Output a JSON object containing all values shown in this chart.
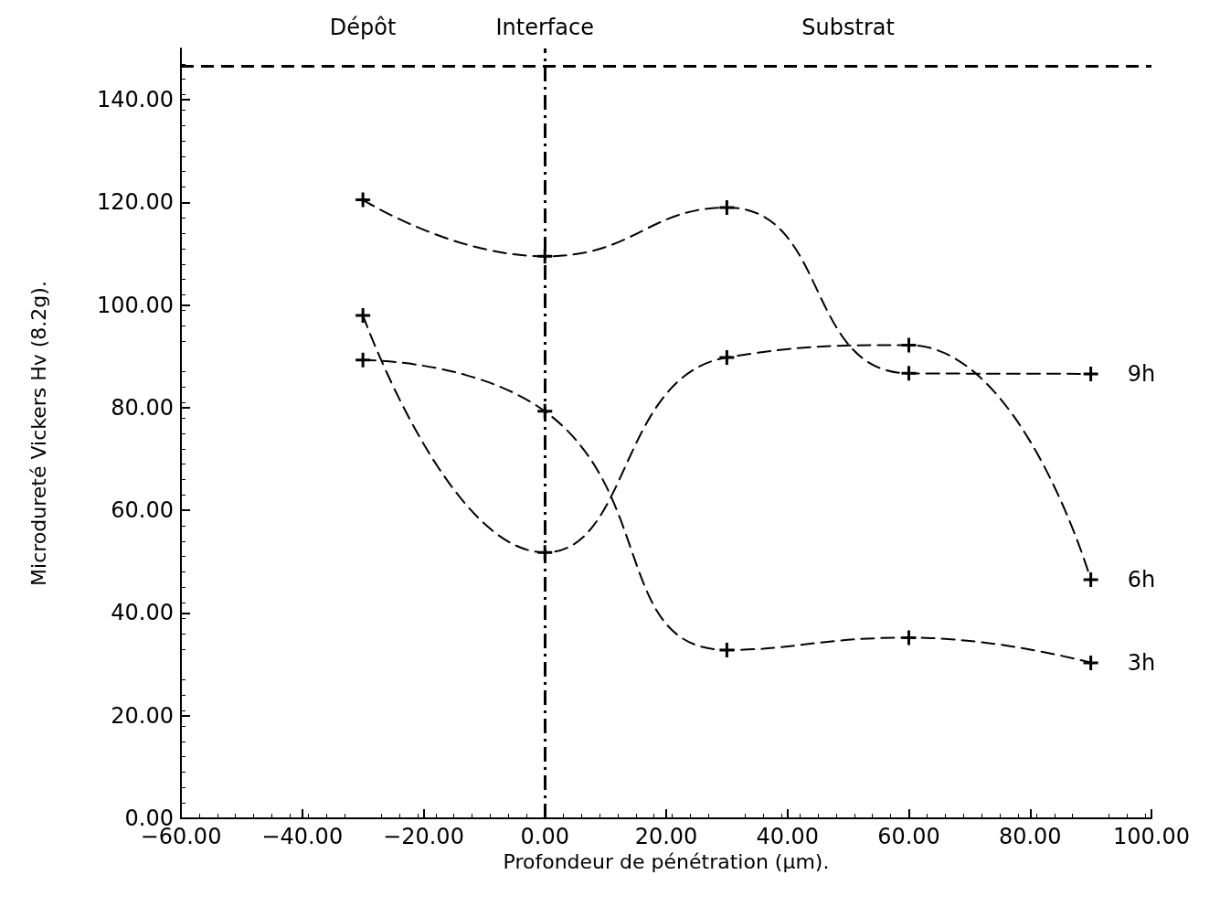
{
  "chart_data": {
    "type": "line",
    "xlabel": "Profondeur de pénétration (µm).",
    "ylabel": "Microdureté Vickers Hv (8.2g).",
    "x": [
      -30,
      0,
      30,
      60,
      90
    ],
    "series": [
      {
        "name": "9h",
        "color": "#000000",
        "values": [
          120.5,
          109.5,
          119,
          86.7,
          86.6
        ]
      },
      {
        "name": "6h",
        "color": "#000000",
        "values": [
          98,
          51.8,
          89.8,
          92.2,
          46.5
        ]
      },
      {
        "name": "3h",
        "color": "#000000",
        "values": [
          89.3,
          79.3,
          32.8,
          35.2,
          30.3
        ]
      }
    ],
    "xlim": [
      -60,
      100
    ],
    "xticks": [
      {
        "value": -60,
        "label": "−60.00"
      },
      {
        "value": -40,
        "label": "−40.00"
      },
      {
        "value": -20,
        "label": "−20.00"
      },
      {
        "value": 0,
        "label": "0.00"
      },
      {
        "value": 20,
        "label": "20.00"
      },
      {
        "value": 40,
        "label": "40.00"
      },
      {
        "value": 60,
        "label": "60.00"
      },
      {
        "value": 80,
        "label": "80.00"
      },
      {
        "value": 100,
        "label": "100.00"
      }
    ],
    "ylim": [
      0,
      150
    ],
    "yticks": [
      {
        "value": 0,
        "label": "0.00"
      },
      {
        "value": 20,
        "label": "20.00"
      },
      {
        "value": 40,
        "label": "40.00"
      },
      {
        "value": 60,
        "label": "60.00"
      },
      {
        "value": 80,
        "label": "80.00"
      },
      {
        "value": 100,
        "label": "100.00"
      },
      {
        "value": 120,
        "label": "120.00"
      },
      {
        "value": 140,
        "label": "140.00"
      }
    ],
    "ref_lines": [
      {
        "axis": "x",
        "value": 0,
        "line_style": "dashdot"
      },
      {
        "axis": "y",
        "value": 146.5,
        "line_style": "dashed"
      }
    ],
    "annotations": [
      "Dépôt",
      "Interface",
      "Substrat"
    ],
    "marker": "cross",
    "line_style": "dashed",
    "grid": false,
    "legend": false
  }
}
